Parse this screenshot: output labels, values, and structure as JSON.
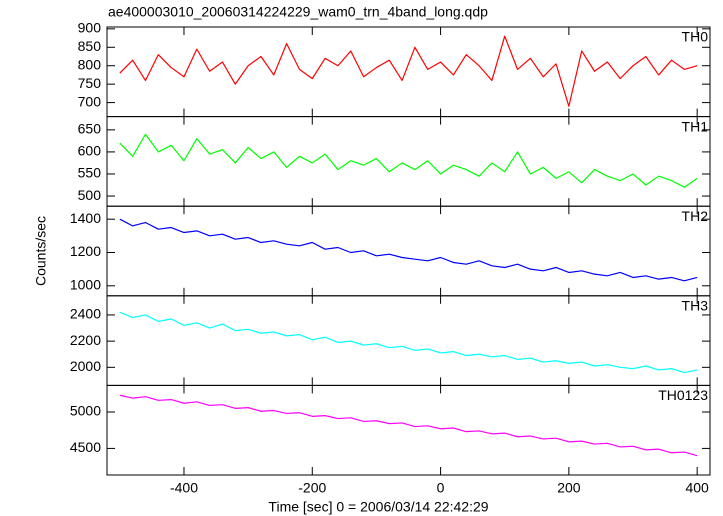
{
  "title": "ae400003010_20060314224229_wam0_trn_4band_long.qdp",
  "ylabel": "Counts/sec",
  "chart_data": [
    {
      "type": "line",
      "label": "TH0",
      "color": "#ff0000",
      "ylim": [
        662,
        905
      ],
      "yticks": [
        700,
        750,
        800,
        850,
        900
      ],
      "xlim": [
        -520,
        420
      ],
      "x": [
        -500,
        -480,
        -460,
        -440,
        -420,
        -400,
        -380,
        -360,
        -340,
        -320,
        -300,
        -280,
        -260,
        -240,
        -220,
        -200,
        -180,
        -160,
        -140,
        -120,
        -100,
        -80,
        -60,
        -40,
        -20,
        0,
        20,
        40,
        60,
        80,
        100,
        120,
        140,
        160,
        180,
        200,
        220,
        240,
        260,
        280,
        300,
        320,
        340,
        360,
        380,
        400
      ],
      "values": [
        780,
        815,
        760,
        830,
        795,
        770,
        845,
        785,
        810,
        750,
        800,
        825,
        775,
        860,
        790,
        765,
        820,
        800,
        840,
        770,
        795,
        815,
        760,
        850,
        790,
        810,
        775,
        830,
        800,
        760,
        880,
        790,
        820,
        770,
        805,
        690,
        840,
        785,
        810,
        765,
        800,
        825,
        775,
        815,
        790,
        800
      ]
    },
    {
      "type": "line",
      "label": "TH1",
      "color": "#00ff00",
      "ylim": [
        477,
        680
      ],
      "yticks": [
        500,
        550,
        600,
        650
      ],
      "xlim": [
        -520,
        420
      ],
      "x": [
        -500,
        -480,
        -460,
        -440,
        -420,
        -400,
        -380,
        -360,
        -340,
        -320,
        -300,
        -280,
        -260,
        -240,
        -220,
        -200,
        -180,
        -160,
        -140,
        -120,
        -100,
        -80,
        -60,
        -40,
        -20,
        0,
        20,
        40,
        60,
        80,
        100,
        120,
        140,
        160,
        180,
        200,
        220,
        240,
        260,
        280,
        300,
        320,
        340,
        360,
        380,
        400
      ],
      "values": [
        620,
        590,
        640,
        600,
        615,
        580,
        630,
        595,
        605,
        575,
        610,
        585,
        600,
        565,
        590,
        575,
        595,
        560,
        580,
        570,
        585,
        555,
        575,
        560,
        580,
        550,
        570,
        560,
        545,
        575,
        555,
        600,
        550,
        565,
        540,
        555,
        530,
        560,
        545,
        535,
        550,
        525,
        545,
        535,
        520,
        540
      ]
    },
    {
      "type": "line",
      "label": "TH2",
      "color": "#0000ff",
      "ylim": [
        940,
        1478
      ],
      "yticks": [
        1000,
        1200,
        1400
      ],
      "xlim": [
        -520,
        420
      ],
      "x": [
        -500,
        -480,
        -460,
        -440,
        -420,
        -400,
        -380,
        -360,
        -340,
        -320,
        -300,
        -280,
        -260,
        -240,
        -220,
        -200,
        -180,
        -160,
        -140,
        -120,
        -100,
        -80,
        -60,
        -40,
        -20,
        0,
        20,
        40,
        60,
        80,
        100,
        120,
        140,
        160,
        180,
        200,
        220,
        240,
        260,
        280,
        300,
        320,
        340,
        360,
        380,
        400
      ],
      "values": [
        1400,
        1360,
        1380,
        1340,
        1350,
        1320,
        1330,
        1300,
        1310,
        1280,
        1290,
        1260,
        1270,
        1250,
        1240,
        1260,
        1220,
        1230,
        1200,
        1210,
        1180,
        1190,
        1170,
        1160,
        1150,
        1170,
        1140,
        1130,
        1150,
        1120,
        1110,
        1130,
        1100,
        1090,
        1110,
        1080,
        1090,
        1070,
        1060,
        1080,
        1050,
        1060,
        1040,
        1050,
        1030,
        1050
      ]
    },
    {
      "type": "line",
      "label": "TH3",
      "color": "#00ffff",
      "ylim": [
        1862,
        2546
      ],
      "yticks": [
        2000,
        2200,
        2400
      ],
      "xlim": [
        -520,
        420
      ],
      "x": [
        -500,
        -480,
        -460,
        -440,
        -420,
        -400,
        -380,
        -360,
        -340,
        -320,
        -300,
        -280,
        -260,
        -240,
        -220,
        -200,
        -180,
        -160,
        -140,
        -120,
        -100,
        -80,
        -60,
        -40,
        -20,
        0,
        20,
        40,
        60,
        80,
        100,
        120,
        140,
        160,
        180,
        200,
        220,
        240,
        260,
        280,
        300,
        320,
        340,
        360,
        380,
        400
      ],
      "values": [
        2420,
        2380,
        2400,
        2350,
        2370,
        2320,
        2340,
        2300,
        2330,
        2280,
        2290,
        2260,
        2270,
        2240,
        2250,
        2210,
        2230,
        2190,
        2200,
        2170,
        2180,
        2150,
        2160,
        2130,
        2140,
        2110,
        2120,
        2090,
        2100,
        2080,
        2090,
        2060,
        2070,
        2040,
        2050,
        2030,
        2040,
        2010,
        2020,
        2000,
        1990,
        2010,
        1980,
        1990,
        1960,
        1980
      ]
    },
    {
      "type": "line",
      "label": "TH0123",
      "color": "#ff00ff",
      "ylim": [
        4135,
        5365
      ],
      "yticks": [
        4500,
        5000
      ],
      "xlim": [
        -520,
        420
      ],
      "xticks": [
        -400,
        -200,
        0,
        200,
        400
      ],
      "xlabel": "Time [sec] 0 = 2006/03/14 22:42:29",
      "x": [
        -500,
        -480,
        -460,
        -440,
        -420,
        -400,
        -380,
        -360,
        -340,
        -320,
        -300,
        -280,
        -260,
        -240,
        -220,
        -200,
        -180,
        -160,
        -140,
        -120,
        -100,
        -80,
        -60,
        -40,
        -20,
        0,
        20,
        40,
        60,
        80,
        100,
        120,
        140,
        160,
        180,
        200,
        220,
        240,
        260,
        280,
        300,
        320,
        340,
        360,
        380,
        400
      ],
      "values": [
        5230,
        5190,
        5210,
        5160,
        5170,
        5120,
        5140,
        5090,
        5100,
        5050,
        5060,
        5010,
        5020,
        4980,
        4990,
        4940,
        4950,
        4910,
        4920,
        4870,
        4880,
        4840,
        4850,
        4800,
        4810,
        4770,
        4780,
        4730,
        4740,
        4700,
        4710,
        4660,
        4670,
        4630,
        4640,
        4590,
        4600,
        4560,
        4570,
        4520,
        4530,
        4480,
        4490,
        4440,
        4450,
        4400
      ]
    }
  ]
}
